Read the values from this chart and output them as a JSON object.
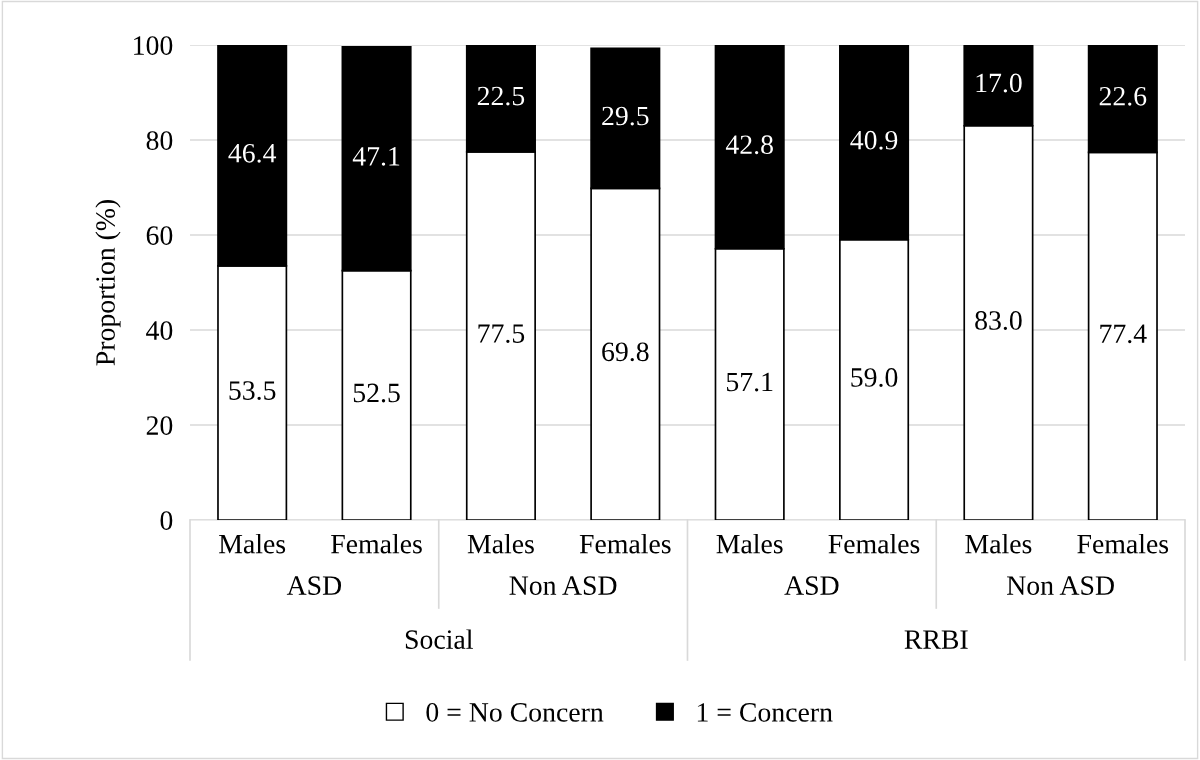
{
  "chart_data": {
    "type": "bar",
    "stacked": true,
    "ylabel": "Proportion (%)",
    "categories": [
      "Males",
      "Females",
      "Males",
      "Females",
      "Males",
      "Females",
      "Males",
      "Females"
    ],
    "series": [
      {
        "name": "0 = No Concern",
        "color": "#ffffff",
        "values": [
          53.5,
          52.5,
          77.5,
          69.8,
          57.1,
          59.0,
          83.0,
          77.4
        ],
        "value_labels": [
          "53.5",
          "52.5",
          "77.5",
          "69.8",
          "57.1",
          "59.0",
          "83.0",
          "77.4"
        ]
      },
      {
        "name": "1 = Concern",
        "color": "#000000",
        "values": [
          46.4,
          47.1,
          22.5,
          29.5,
          42.8,
          40.9,
          17.0,
          22.6
        ],
        "value_labels": [
          "46.4",
          "47.1",
          "22.5",
          "29.5",
          "42.8",
          "40.9",
          "17.0",
          "22.6"
        ]
      }
    ],
    "annotations": [
      "ASD",
      "Non ASD",
      "ASD",
      "Non ASD",
      "Social",
      "RRBI"
    ],
    "ylim": [
      0,
      100
    ],
    "yticks": [
      0,
      20,
      40,
      60,
      80,
      100
    ],
    "grid": "y",
    "legend": "bottom"
  }
}
